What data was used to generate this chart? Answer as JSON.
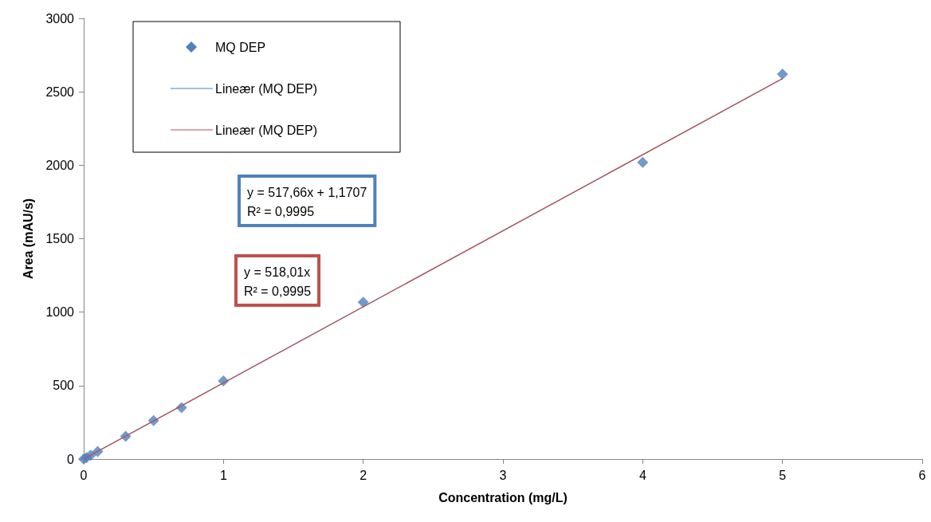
{
  "chart_data": {
    "type": "scatter",
    "xlabel": "Concentration (mg/L)",
    "ylabel": "Area (mAU/s)",
    "xlim": [
      0,
      6
    ],
    "xticks": [
      0,
      1,
      2,
      3,
      4,
      5,
      6
    ],
    "ylim": [
      0,
      3000
    ],
    "yticks": [
      0,
      500,
      1000,
      1500,
      2000,
      2500,
      3000
    ],
    "grid": false,
    "legend": "top left",
    "series": [
      {
        "name": "MQ DEP",
        "color": "#4f81bd",
        "marker": "diamond",
        "x": [
          0,
          0.02,
          0.05,
          0.1,
          0.3,
          0.5,
          0.7,
          1,
          2,
          4,
          5
        ],
        "values": [
          0,
          10,
          26,
          52,
          155,
          262,
          350,
          532,
          1068,
          2020,
          2620
        ]
      },
      {
        "name": "Lineær (MQ DEP)",
        "type": "line",
        "color": "#4f81bd",
        "x": [
          0,
          5
        ],
        "marker": "none",
        "values": [
          1,
          2589
        ]
      },
      {
        "name": "Lineær (MQ DEP)",
        "type": "line",
        "color": "#c0504d",
        "x": [
          0,
          5
        ],
        "marker": "none",
        "values": [
          0,
          2590
        ]
      }
    ],
    "annotations": [
      "y = 517,66x + 1,1707\nR² = 0,9995",
      "y = 518,01x\nR² = 0,9995"
    ]
  }
}
